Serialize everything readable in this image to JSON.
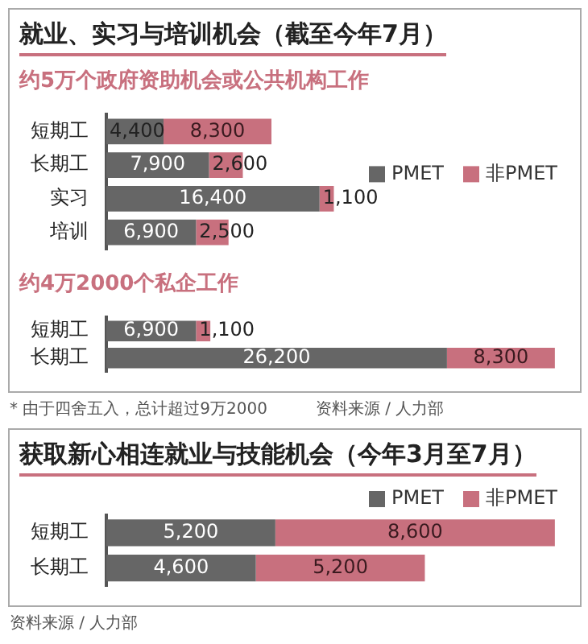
{
  "chart_data": [
    {
      "type": "bar",
      "title": "就业、实习与培训机会（截至今年7月）",
      "subtitle": "约5万个政府资助机会或公共机构工作",
      "orientation": "horizontal",
      "stacked": true,
      "grid": false,
      "legend": "right",
      "categories": [
        "短期工",
        "长期工",
        "实习",
        "培训"
      ],
      "series": [
        {
          "name": "PMET",
          "color": "#666666",
          "values": [
            4400,
            7900,
            16400,
            6900
          ],
          "value_labels": [
            "4,400",
            "7,900",
            "16,400",
            "6,900"
          ]
        },
        {
          "name": "非PMET",
          "color": "#c8707e",
          "values": [
            8300,
            2600,
            1100,
            2500
          ],
          "value_labels": [
            "8,300",
            "2,600",
            "1,100",
            "2,500"
          ]
        }
      ]
    },
    {
      "type": "bar",
      "subtitle": "约4万2000个私企工作",
      "orientation": "horizontal",
      "stacked": true,
      "grid": false,
      "categories": [
        "短期工",
        "长期工"
      ],
      "series": [
        {
          "color": "#666666",
          "values": [
            6900,
            26200
          ],
          "value_labels": [
            "6,900",
            "26,200"
          ]
        },
        {
          "color": "#c8707e",
          "values": [
            1100,
            8300
          ],
          "value_labels": [
            "1,100",
            "8,300"
          ]
        }
      ],
      "annotations": [
        "* 由于四舍五入，总计超过9万2000",
        "资料来源 / 人力部"
      ]
    },
    {
      "type": "bar",
      "title": "获取新心相连就业与技能机会（今年3月至7月）",
      "orientation": "horizontal",
      "stacked": true,
      "grid": false,
      "legend": "top right",
      "categories": [
        "短期工",
        "长期工"
      ],
      "series": [
        {
          "name": "PMET",
          "color": "#666666",
          "values": [
            5200,
            4600
          ],
          "value_labels": [
            "5,200",
            "4,600"
          ]
        },
        {
          "name": "非PMET",
          "color": "#c8707e",
          "values": [
            8600,
            5200
          ],
          "value_labels": [
            "8,600",
            "5,200"
          ]
        }
      ],
      "annotations": [
        "资料来源 / 人力部"
      ]
    }
  ]
}
